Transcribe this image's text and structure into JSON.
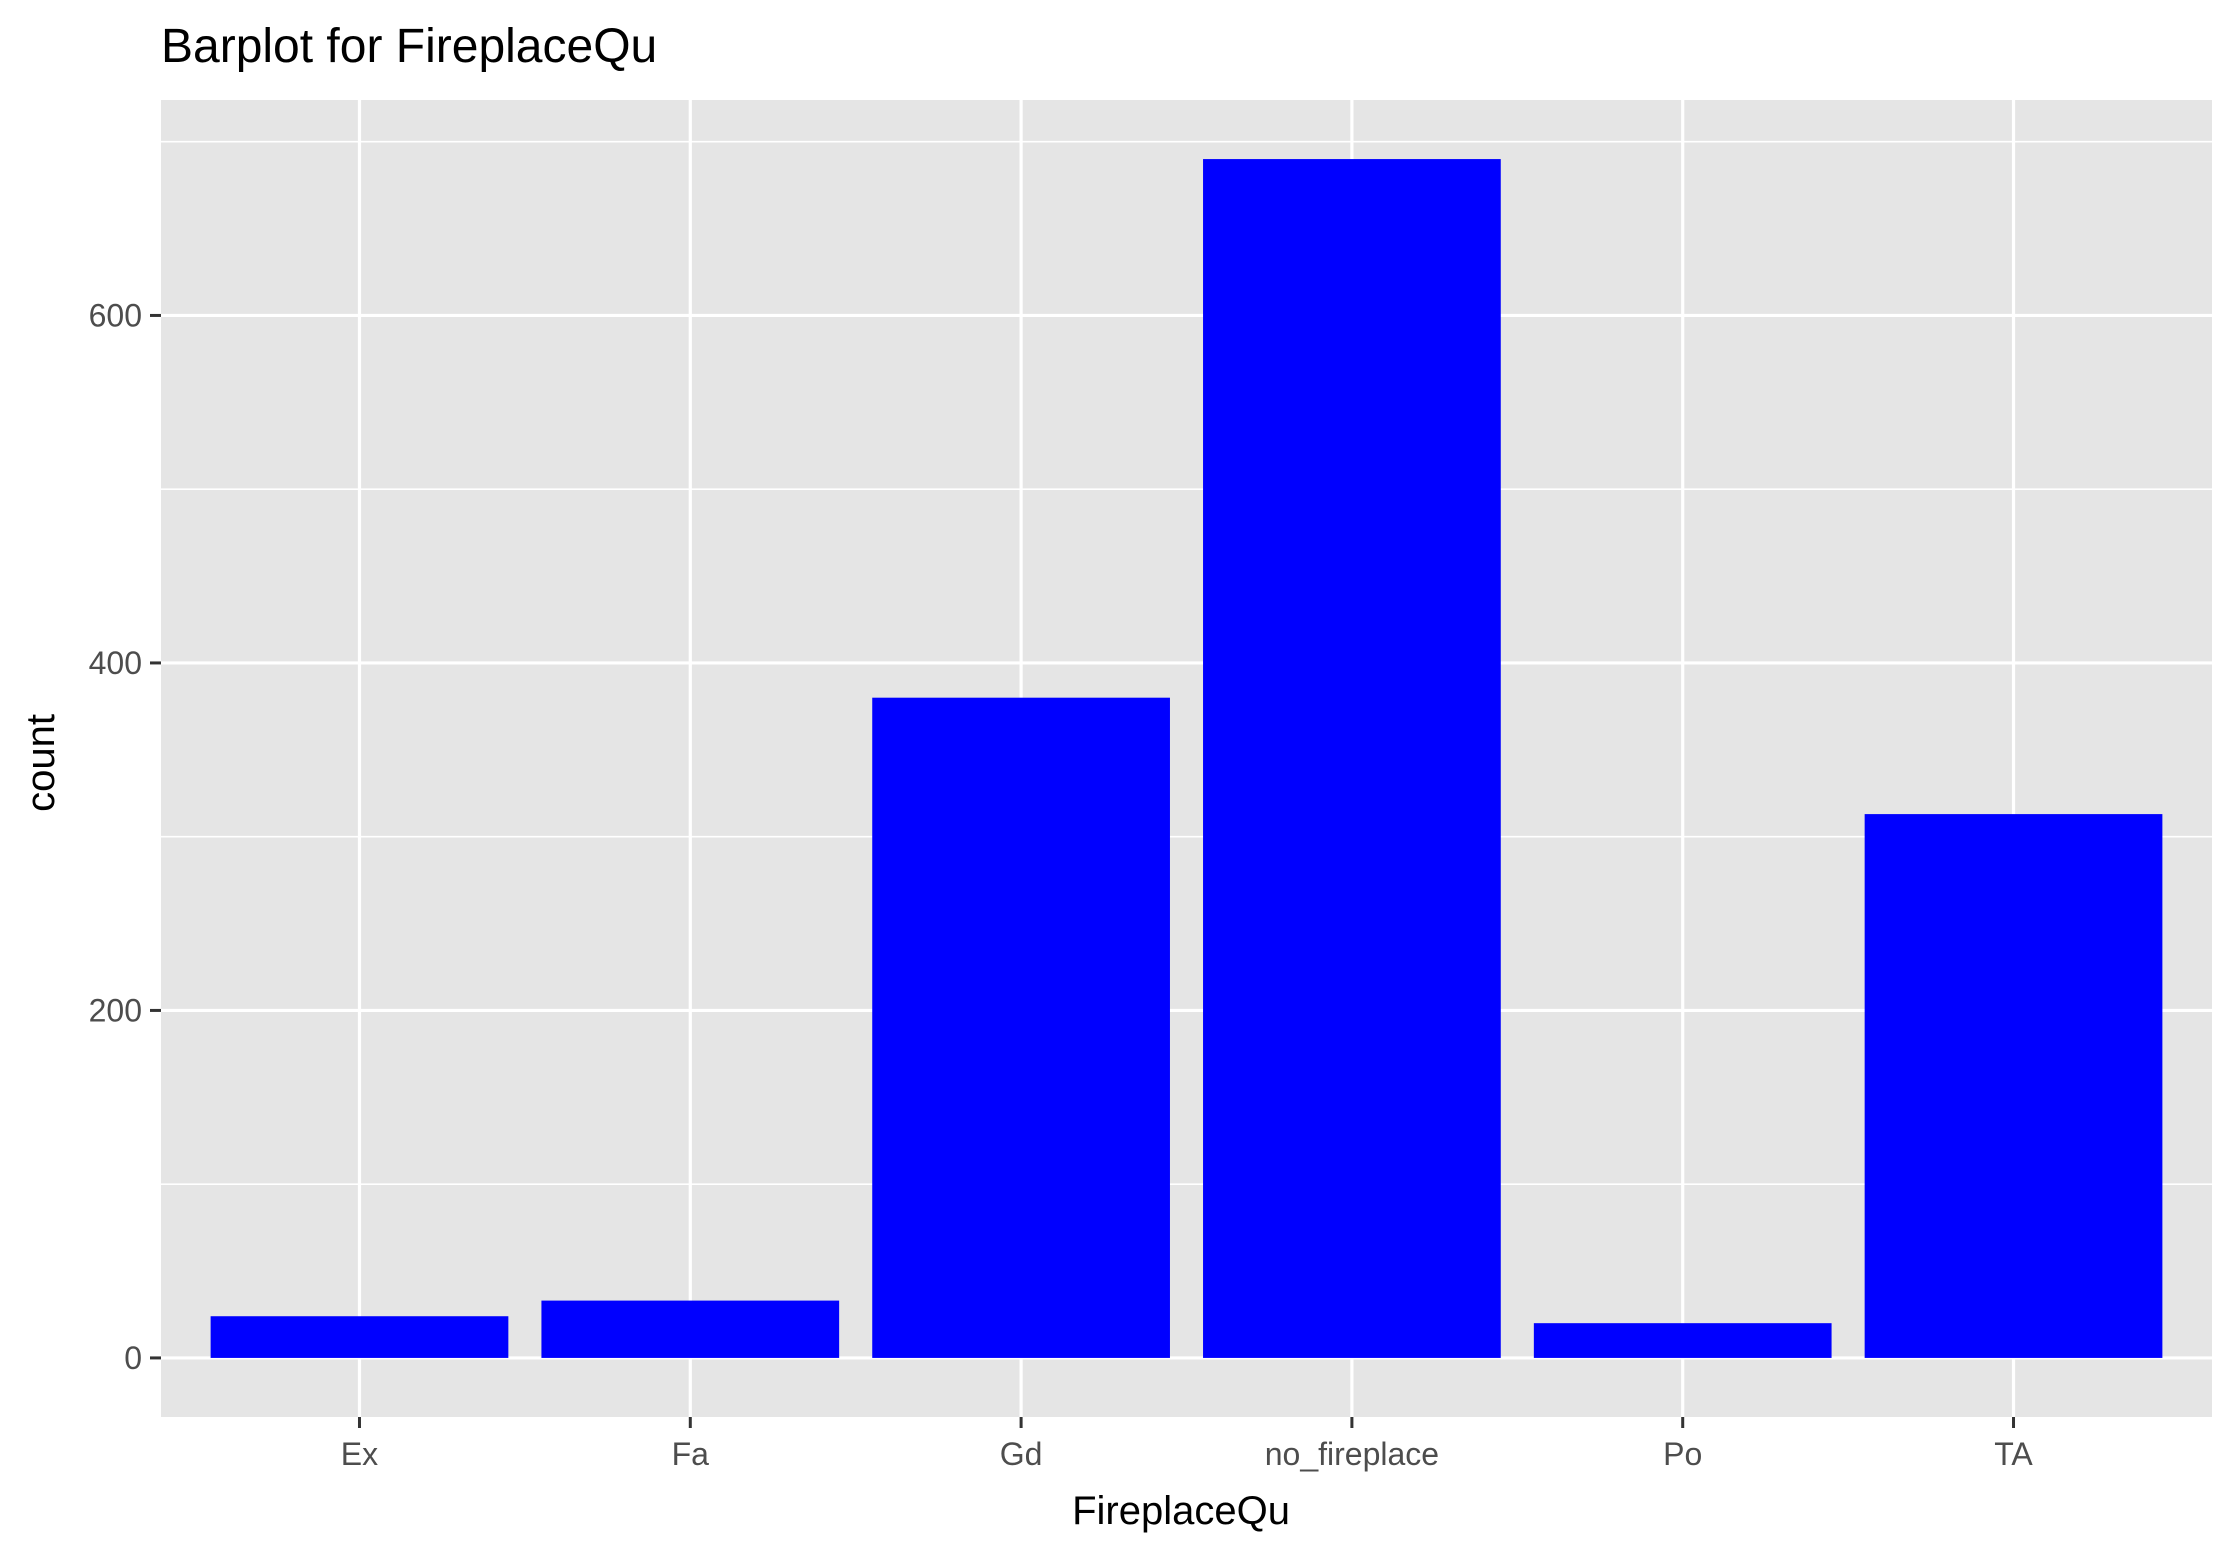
{
  "chart_data": {
    "type": "bar",
    "title": "Barplot for FireplaceQu",
    "xlabel": "FireplaceQu",
    "ylabel": "count",
    "categories": [
      "Ex",
      "Fa",
      "Gd",
      "no_fireplace",
      "Po",
      "TA"
    ],
    "values": [
      24,
      33,
      380,
      690,
      20,
      313
    ],
    "yticks": [
      0,
      200,
      400,
      600
    ],
    "ylim": [
      -34,
      724
    ],
    "bar_color": "#0000ff",
    "panel_background": "#e5e5e5",
    "grid": true,
    "legend": "none"
  }
}
